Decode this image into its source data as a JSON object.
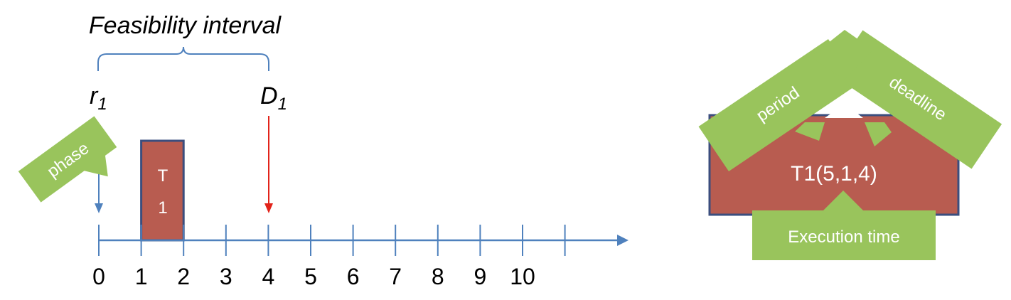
{
  "feasibility": {
    "title": "Feasibility interval",
    "release_label": "r",
    "release_sub": "1",
    "deadline_label": "D",
    "deadline_sub": "1"
  },
  "job": {
    "label_line1": "T",
    "label_line2": "1",
    "start": 1,
    "end": 2
  },
  "phase_label": "phase",
  "release_time": 0,
  "deadline_time": 4,
  "axis": {
    "ticks": [
      0,
      1,
      2,
      3,
      4,
      5,
      6,
      7,
      8,
      9,
      10
    ],
    "tick_labels": [
      "0",
      "1",
      "2",
      "3",
      "4",
      "5",
      "6",
      "7",
      "8",
      "9",
      "10"
    ]
  },
  "task_box": {
    "text": "T1(5,1,4)",
    "period_label": "period",
    "deadline_label": "deadline",
    "execution_label": "Execution time"
  },
  "colors": {
    "axis_blue": "#4f81bd",
    "job_fill": "#b85c50",
    "job_border": "#3b4e7e",
    "deadline_red": "#e2231a",
    "callout_green": "#99c45c",
    "text_dark": "#000000",
    "text_light": "#ffffff"
  }
}
